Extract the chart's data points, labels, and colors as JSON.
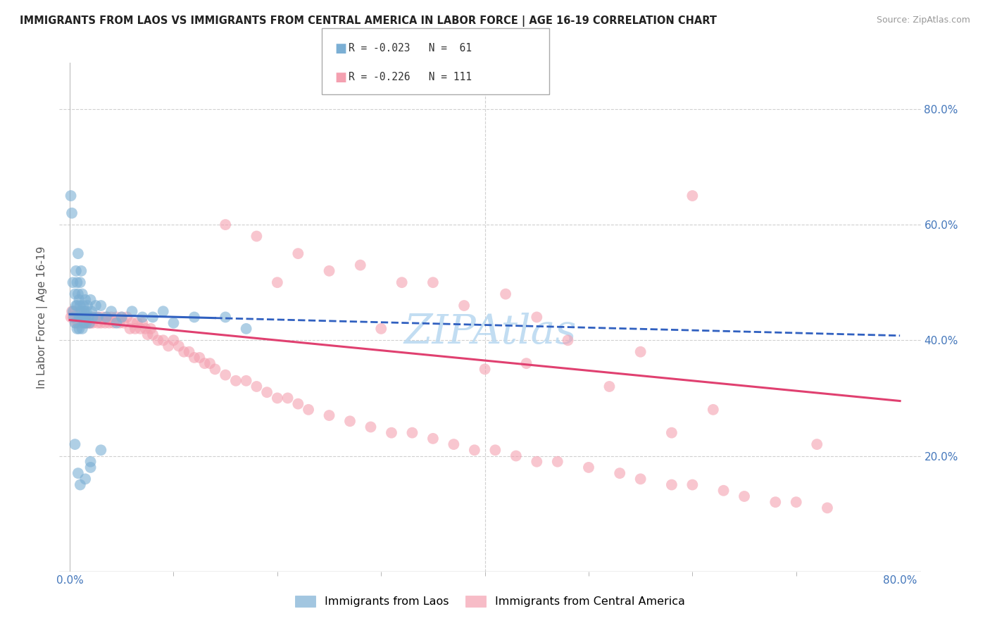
{
  "title": "IMMIGRANTS FROM LAOS VS IMMIGRANTS FROM CENTRAL AMERICA IN LABOR FORCE | AGE 16-19 CORRELATION CHART",
  "source": "Source: ZipAtlas.com",
  "ylabel_label": "In Labor Force | Age 16-19",
  "xlim": [
    -0.01,
    0.82
  ],
  "ylim": [
    0.0,
    0.88
  ],
  "series1_name": "Immigrants from Laos",
  "series1_color": "#7bafd4",
  "series1_R": -0.023,
  "series1_N": 61,
  "series2_name": "Immigrants from Central America",
  "series2_color": "#f4a0b0",
  "series2_R": -0.226,
  "series2_N": 111,
  "line1_color": "#3060c0",
  "line2_color": "#e04070",
  "watermark_color": "#b8d8f0",
  "grid_color": "#d0d0d0",
  "background_color": "#ffffff",
  "trend1_x0": 0.0,
  "trend1_y0": 0.445,
  "trend1_x1": 0.8,
  "trend1_y1": 0.408,
  "trend1_solid_end": 0.14,
  "trend2_x0": 0.0,
  "trend2_y0": 0.435,
  "trend2_x1": 0.8,
  "trend2_y1": 0.295,
  "laos_x": [
    0.001,
    0.002,
    0.003,
    0.003,
    0.004,
    0.005,
    0.005,
    0.006,
    0.006,
    0.007,
    0.007,
    0.007,
    0.008,
    0.008,
    0.009,
    0.009,
    0.009,
    0.01,
    0.01,
    0.01,
    0.011,
    0.011,
    0.012,
    0.012,
    0.012,
    0.013,
    0.013,
    0.014,
    0.014,
    0.015,
    0.015,
    0.016,
    0.016,
    0.017,
    0.018,
    0.019,
    0.02,
    0.021,
    0.022,
    0.025,
    0.027,
    0.03,
    0.035,
    0.04,
    0.045,
    0.05,
    0.06,
    0.07,
    0.08,
    0.09,
    0.1,
    0.12,
    0.15,
    0.17,
    0.02,
    0.03,
    0.005,
    0.008,
    0.01,
    0.015,
    0.02
  ],
  "laos_y": [
    0.65,
    0.62,
    0.5,
    0.45,
    0.44,
    0.48,
    0.43,
    0.52,
    0.46,
    0.5,
    0.46,
    0.42,
    0.55,
    0.48,
    0.44,
    0.47,
    0.42,
    0.5,
    0.46,
    0.44,
    0.52,
    0.45,
    0.48,
    0.44,
    0.42,
    0.46,
    0.44,
    0.45,
    0.43,
    0.47,
    0.44,
    0.45,
    0.43,
    0.46,
    0.44,
    0.43,
    0.47,
    0.45,
    0.44,
    0.46,
    0.44,
    0.46,
    0.44,
    0.45,
    0.43,
    0.44,
    0.45,
    0.44,
    0.44,
    0.45,
    0.43,
    0.44,
    0.44,
    0.42,
    0.19,
    0.21,
    0.22,
    0.17,
    0.15,
    0.16,
    0.18
  ],
  "ca_x": [
    0.001,
    0.002,
    0.003,
    0.004,
    0.005,
    0.006,
    0.007,
    0.008,
    0.009,
    0.01,
    0.011,
    0.012,
    0.013,
    0.014,
    0.015,
    0.016,
    0.017,
    0.018,
    0.019,
    0.02,
    0.021,
    0.022,
    0.025,
    0.027,
    0.028,
    0.03,
    0.032,
    0.034,
    0.036,
    0.038,
    0.04,
    0.042,
    0.045,
    0.048,
    0.05,
    0.052,
    0.055,
    0.058,
    0.06,
    0.063,
    0.065,
    0.068,
    0.07,
    0.073,
    0.075,
    0.078,
    0.08,
    0.085,
    0.09,
    0.095,
    0.1,
    0.105,
    0.11,
    0.115,
    0.12,
    0.125,
    0.13,
    0.135,
    0.14,
    0.15,
    0.16,
    0.17,
    0.18,
    0.19,
    0.2,
    0.21,
    0.22,
    0.23,
    0.25,
    0.27,
    0.29,
    0.31,
    0.33,
    0.35,
    0.37,
    0.39,
    0.41,
    0.43,
    0.45,
    0.47,
    0.5,
    0.53,
    0.55,
    0.58,
    0.6,
    0.63,
    0.65,
    0.68,
    0.7,
    0.73,
    0.35,
    0.42,
    0.28,
    0.55,
    0.38,
    0.48,
    0.22,
    0.32,
    0.45,
    0.6,
    0.18,
    0.25,
    0.15,
    0.52,
    0.62,
    0.72,
    0.4,
    0.3,
    0.2,
    0.58,
    0.44
  ],
  "ca_y": [
    0.44,
    0.45,
    0.44,
    0.45,
    0.44,
    0.43,
    0.44,
    0.43,
    0.44,
    0.45,
    0.44,
    0.43,
    0.44,
    0.43,
    0.44,
    0.43,
    0.44,
    0.43,
    0.44,
    0.43,
    0.44,
    0.43,
    0.44,
    0.43,
    0.44,
    0.43,
    0.44,
    0.43,
    0.44,
    0.43,
    0.44,
    0.43,
    0.44,
    0.43,
    0.44,
    0.43,
    0.44,
    0.42,
    0.43,
    0.42,
    0.43,
    0.42,
    0.43,
    0.42,
    0.41,
    0.42,
    0.41,
    0.4,
    0.4,
    0.39,
    0.4,
    0.39,
    0.38,
    0.38,
    0.37,
    0.37,
    0.36,
    0.36,
    0.35,
    0.34,
    0.33,
    0.33,
    0.32,
    0.31,
    0.3,
    0.3,
    0.29,
    0.28,
    0.27,
    0.26,
    0.25,
    0.24,
    0.24,
    0.23,
    0.22,
    0.21,
    0.21,
    0.2,
    0.19,
    0.19,
    0.18,
    0.17,
    0.16,
    0.15,
    0.15,
    0.14,
    0.13,
    0.12,
    0.12,
    0.11,
    0.5,
    0.48,
    0.53,
    0.38,
    0.46,
    0.4,
    0.55,
    0.5,
    0.44,
    0.65,
    0.58,
    0.52,
    0.6,
    0.32,
    0.28,
    0.22,
    0.35,
    0.42,
    0.5,
    0.24,
    0.36
  ]
}
